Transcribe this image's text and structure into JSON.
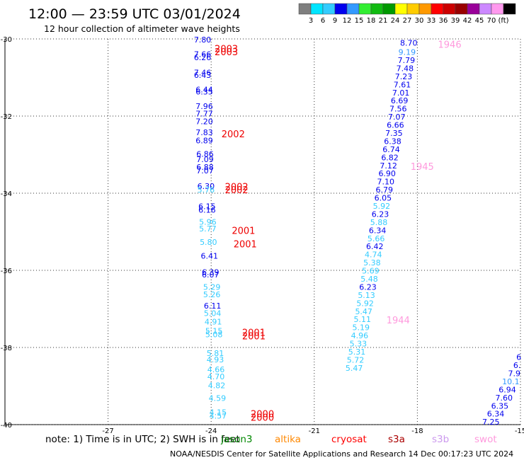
{
  "header": {
    "title": "12:00 — 23:59 UTC 03/01/2024",
    "subtitle": "12 hour collection of altimeter wave heights"
  },
  "colorbar": {
    "colors": [
      "#7f7f7f",
      "#00e5ff",
      "#33ccff",
      "#0000ee",
      "#3399ff",
      "#33ee33",
      "#11bb11",
      "#009900",
      "#ffff00",
      "#ffcc00",
      "#ff9900",
      "#ff0000",
      "#cc0000",
      "#990000",
      "#990099",
      "#cc88ff",
      "#ff99ee",
      "#000000"
    ],
    "labels": [
      "3",
      "6",
      "9",
      "12",
      "15",
      "18",
      "21",
      "24",
      "27",
      "30",
      "33",
      "36",
      "39",
      "42",
      "45",
      "70",
      "(ft)"
    ]
  },
  "footer": {
    "note": "note:  1) Time is in UTC; 2) SWH is in feet",
    "missions": [
      {
        "name": "jason3",
        "color": "#008800"
      },
      {
        "name": "altika",
        "color": "#ff8800"
      },
      {
        "name": "cryosat",
        "color": "#ff0000"
      },
      {
        "name": "s3a",
        "color": "#aa0000"
      },
      {
        "name": "s3b",
        "color": "#cc99ee"
      },
      {
        "name": "swot",
        "color": "#ff99dd"
      }
    ],
    "credit": "NOAA/NESDIS Center for Satellite Applications and Research    14 Dec 00:17:23 UTC 2024"
  },
  "chart_data": {
    "type": "scatter",
    "title": "12:00 — 23:59 UTC 03/01/2024",
    "subtitle": "12 hour collection of altimeter wave heights",
    "xlim": [
      -30,
      -15
    ],
    "ylim": [
      -40,
      -30
    ],
    "x_ticks": [
      -27,
      -24,
      -21,
      -18,
      -15
    ],
    "x_tick_labels": [
      "-27",
      "-24",
      "-21",
      "-18",
      "-15"
    ],
    "y_ticks": [
      -40,
      -38,
      -36,
      -34,
      -32,
      -30
    ],
    "y_tick_labels": [
      "-40",
      "-38",
      "-36",
      "-34",
      "-32",
      "-30"
    ],
    "grid": true,
    "series": [
      {
        "name": "cryosat",
        "color": "#ff0000",
        "points": [
          {
            "x": -24.25,
            "y": -30.02,
            "label": "7.80"
          },
          {
            "x": -24.25,
            "y": -30.39,
            "label": "7.66"
          },
          {
            "x": -24.25,
            "y": -30.48,
            "label": "6.26"
          },
          {
            "x": -24.25,
            "y": -30.87,
            "label": "7.46"
          },
          {
            "x": -24.25,
            "y": -30.94,
            "label": "6.43"
          },
          {
            "x": -24.2,
            "y": -31.31,
            "label": "6.44"
          },
          {
            "x": -24.2,
            "y": -31.37,
            "label": "6.35"
          },
          {
            "x": -24.2,
            "y": -31.74,
            "label": "7.96"
          },
          {
            "x": -24.2,
            "y": -31.94,
            "label": "7.77"
          },
          {
            "x": -24.2,
            "y": -32.14,
            "label": "7.20"
          },
          {
            "x": -24.2,
            "y": -32.42,
            "label": "7.83"
          },
          {
            "x": -24.2,
            "y": -32.63,
            "label": "6.89"
          },
          {
            "x": -24.18,
            "y": -32.98,
            "label": "6.86"
          },
          {
            "x": -24.18,
            "y": -33.12,
            "label": "7.09"
          },
          {
            "x": -24.18,
            "y": -33.32,
            "label": "6.88"
          },
          {
            "x": -24.18,
            "y": -33.41,
            "label": "7.07"
          },
          {
            "x": -24.15,
            "y": -33.82,
            "label": "6.30"
          },
          {
            "x": -24.15,
            "y": -33.91,
            "label": "5.76"
          },
          {
            "x": -24.12,
            "y": -34.34,
            "label": "6.15"
          },
          {
            "x": -24.12,
            "y": -34.43,
            "label": "6.16"
          },
          {
            "x": -24.1,
            "y": -34.74,
            "label": "5.96"
          },
          {
            "x": -24.1,
            "y": -34.92,
            "label": "5.77"
          },
          {
            "x": -24.08,
            "y": -35.27,
            "label": "5.80"
          },
          {
            "x": -24.05,
            "y": -35.62,
            "label": "6.41"
          },
          {
            "x": -24.02,
            "y": -36.05,
            "label": "6.39"
          },
          {
            "x": -24.02,
            "y": -36.11,
            "label": "6.07"
          },
          {
            "x": -23.98,
            "y": -36.43,
            "label": "5.29"
          },
          {
            "x": -23.98,
            "y": -36.62,
            "label": "5.26"
          },
          {
            "x": -23.96,
            "y": -36.92,
            "label": "6.11"
          },
          {
            "x": -23.96,
            "y": -37.11,
            "label": "5.04"
          },
          {
            "x": -23.94,
            "y": -37.33,
            "label": "4.91"
          },
          {
            "x": -23.92,
            "y": -37.57,
            "label": "5.15"
          },
          {
            "x": -23.92,
            "y": -37.66,
            "label": "5.08"
          },
          {
            "x": -23.88,
            "y": -38.15,
            "label": "5.81"
          },
          {
            "x": -23.88,
            "y": -38.31,
            "label": "4.93"
          },
          {
            "x": -23.86,
            "y": -38.57,
            "label": "4.66"
          },
          {
            "x": -23.86,
            "y": -38.75,
            "label": "4.70"
          },
          {
            "x": -23.84,
            "y": -38.98,
            "label": "4.82"
          },
          {
            "x": -23.82,
            "y": -39.31,
            "label": "4.59"
          },
          {
            "x": -23.8,
            "y": -39.68,
            "label": "4.15"
          },
          {
            "x": -23.8,
            "y": -39.77,
            "label": "4.57"
          }
        ]
      },
      {
        "name": "swot",
        "color": "#ff99dd",
        "points": [
          {
            "x": -18.25,
            "y": -30.1,
            "label": "8.70"
          },
          {
            "x": -18.3,
            "y": -30.34,
            "label": "9.19"
          },
          {
            "x": -18.32,
            "y": -30.55,
            "label": "7.79"
          },
          {
            "x": -18.36,
            "y": -30.76,
            "label": "7.48"
          },
          {
            "x": -18.4,
            "y": -30.97,
            "label": "7.23"
          },
          {
            "x": -18.44,
            "y": -31.18,
            "label": "7.61"
          },
          {
            "x": -18.48,
            "y": -31.39,
            "label": "7.01"
          },
          {
            "x": -18.52,
            "y": -31.6,
            "label": "6.69"
          },
          {
            "x": -18.56,
            "y": -31.81,
            "label": "7.56"
          },
          {
            "x": -18.6,
            "y": -32.02,
            "label": "7.07"
          },
          {
            "x": -18.64,
            "y": -32.23,
            "label": "6.66"
          },
          {
            "x": -18.68,
            "y": -32.44,
            "label": "7.35"
          },
          {
            "x": -18.72,
            "y": -32.65,
            "label": "6.38"
          },
          {
            "x": -18.76,
            "y": -32.86,
            "label": "6.74"
          },
          {
            "x": -18.8,
            "y": -33.07,
            "label": "6.82"
          },
          {
            "x": -18.84,
            "y": -33.28,
            "label": "7.12"
          },
          {
            "x": -18.88,
            "y": -33.49,
            "label": "6.90"
          },
          {
            "x": -18.92,
            "y": -33.7,
            "label": "7.10"
          },
          {
            "x": -18.96,
            "y": -33.91,
            "label": "6.79"
          },
          {
            "x": -19.0,
            "y": -34.12,
            "label": "6.05"
          },
          {
            "x": -19.04,
            "y": -34.33,
            "label": "5.92"
          },
          {
            "x": -19.08,
            "y": -34.54,
            "label": "6.23"
          },
          {
            "x": -19.12,
            "y": -34.75,
            "label": "5.88"
          },
          {
            "x": -19.16,
            "y": -34.96,
            "label": "6.34"
          },
          {
            "x": -19.2,
            "y": -35.17,
            "label": "5.66"
          },
          {
            "x": -19.24,
            "y": -35.38,
            "label": "6.42"
          },
          {
            "x": -19.28,
            "y": -35.59,
            "label": "4.74"
          },
          {
            "x": -19.32,
            "y": -35.8,
            "label": "5.38"
          },
          {
            "x": -19.36,
            "y": -36.01,
            "label": "5.69"
          },
          {
            "x": -19.4,
            "y": -36.22,
            "label": "5.48"
          },
          {
            "x": -19.44,
            "y": -36.43,
            "label": "6.23"
          },
          {
            "x": -19.48,
            "y": -36.64,
            "label": "5.13"
          },
          {
            "x": -19.52,
            "y": -36.85,
            "label": "5.92"
          },
          {
            "x": -19.56,
            "y": -37.06,
            "label": "5.47"
          },
          {
            "x": -19.6,
            "y": -37.27,
            "label": "5.11"
          },
          {
            "x": -19.64,
            "y": -37.48,
            "label": "5.19"
          },
          {
            "x": -19.68,
            "y": -37.69,
            "label": "4.96"
          },
          {
            "x": -19.72,
            "y": -37.9,
            "label": "5.33"
          },
          {
            "x": -19.76,
            "y": -38.11,
            "label": "5.31"
          },
          {
            "x": -19.8,
            "y": -38.32,
            "label": "5.72"
          },
          {
            "x": -19.84,
            "y": -38.53,
            "label": "5.47"
          }
        ]
      },
      {
        "name": "swot-east",
        "color": "#ff99dd",
        "points": [
          {
            "x": -15.05,
            "y": -38.25,
            "label": "6"
          },
          {
            "x": -15.1,
            "y": -38.46,
            "label": "6."
          },
          {
            "x": -15.18,
            "y": -38.67,
            "label": "7.9"
          },
          {
            "x": -15.28,
            "y": -38.88,
            "label": "10.1"
          },
          {
            "x": -15.38,
            "y": -39.09,
            "label": "6.94"
          },
          {
            "x": -15.48,
            "y": -39.3,
            "label": "7.60"
          },
          {
            "x": -15.6,
            "y": -39.51,
            "label": "6.35"
          },
          {
            "x": -15.72,
            "y": -39.72,
            "label": "6.34"
          },
          {
            "x": -15.86,
            "y": -39.93,
            "label": "7.25"
          }
        ]
      }
    ],
    "time_labels": [
      {
        "text": "2003",
        "x": -23.9,
        "y": -30.25,
        "color": "#ee0000"
      },
      {
        "text": "2003",
        "x": -23.9,
        "y": -30.33,
        "color": "#ee0000"
      },
      {
        "text": "2002",
        "x": -23.7,
        "y": -32.46,
        "color": "#ee0000"
      },
      {
        "text": "2002",
        "x": -23.6,
        "y": -33.83,
        "color": "#ee0000"
      },
      {
        "text": "2002",
        "x": -23.6,
        "y": -33.91,
        "color": "#ee0000"
      },
      {
        "text": "2001",
        "x": -23.4,
        "y": -34.96,
        "color": "#ee0000"
      },
      {
        "text": "2001",
        "x": -23.35,
        "y": -35.31,
        "color": "#ee0000"
      },
      {
        "text": "2001",
        "x": -23.1,
        "y": -37.61,
        "color": "#ee0000"
      },
      {
        "text": "2001",
        "x": -23.1,
        "y": -37.7,
        "color": "#ee0000"
      },
      {
        "text": "2000",
        "x": -22.85,
        "y": -39.72,
        "color": "#ee0000"
      },
      {
        "text": "2000",
        "x": -22.85,
        "y": -39.81,
        "color": "#ee0000"
      },
      {
        "text": "1946",
        "x": -17.4,
        "y": -30.14,
        "color": "#ff99dd"
      },
      {
        "text": "1945",
        "x": -18.2,
        "y": -33.3,
        "color": "#ff99dd"
      },
      {
        "text": "1944",
        "x": -18.9,
        "y": -37.28,
        "color": "#ff99dd"
      }
    ]
  }
}
